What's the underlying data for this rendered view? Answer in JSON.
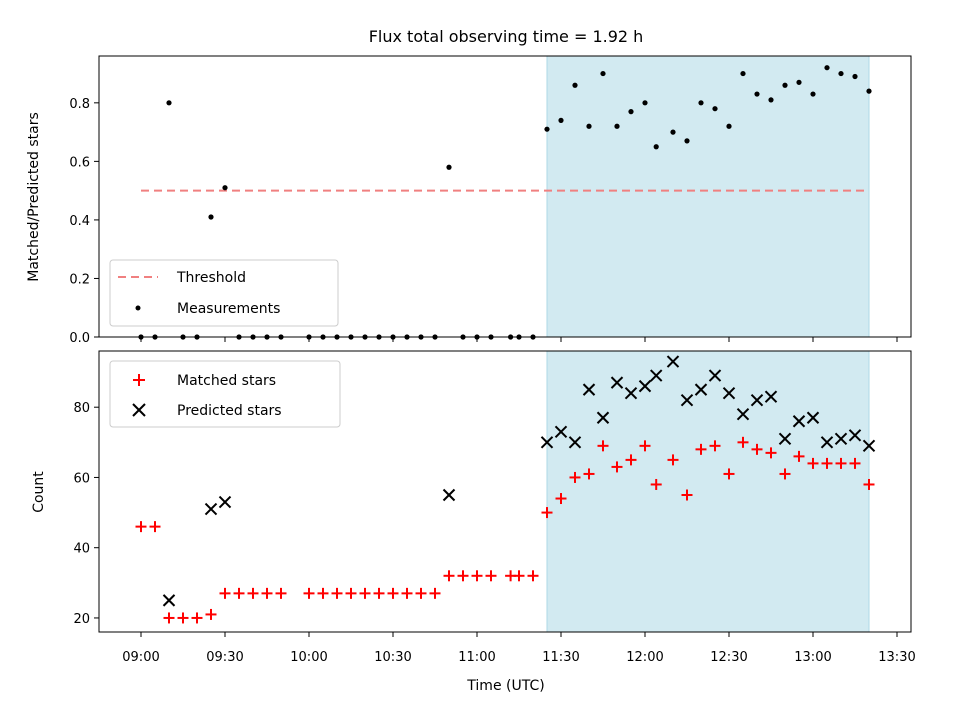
{
  "chart_data": [
    {
      "type": "scatter",
      "title": "Flux total observing time = 1.92 h",
      "xlabel": "",
      "ylabel": "Matched/Predicted stars",
      "xlim": [
        "08:45",
        "13:35"
      ],
      "ylim": [
        0,
        0.96
      ],
      "yticks": [
        0.0,
        0.2,
        0.4,
        0.6,
        0.8
      ],
      "yticklabels": [
        "0.0",
        "0.2",
        "0.4",
        "0.6",
        "0.8"
      ],
      "legend_position": "bottom-left",
      "threshold": {
        "label": "Threshold",
        "value": 0.5,
        "x_range": [
          "09:00",
          "13:20"
        ],
        "color": "#f08080"
      },
      "shaded_region": {
        "x_range": [
          "11:25",
          "13:20"
        ],
        "color": "#add8e6"
      },
      "series": [
        {
          "name": "Measurements",
          "color": "#000000",
          "marker": "dot",
          "points": [
            [
              "09:00",
              0.0
            ],
            [
              "09:05",
              0.0
            ],
            [
              "09:10",
              0.8
            ],
            [
              "09:15",
              0.0
            ],
            [
              "09:20",
              0.0
            ],
            [
              "09:25",
              0.41
            ],
            [
              "09:30",
              0.51
            ],
            [
              "09:35",
              0.0
            ],
            [
              "09:40",
              0.0
            ],
            [
              "09:45",
              0.0
            ],
            [
              "09:50",
              0.0
            ],
            [
              "10:00",
              0.0
            ],
            [
              "10:05",
              0.0
            ],
            [
              "10:10",
              0.0
            ],
            [
              "10:15",
              0.0
            ],
            [
              "10:20",
              0.0
            ],
            [
              "10:25",
              0.0
            ],
            [
              "10:30",
              0.0
            ],
            [
              "10:35",
              0.0
            ],
            [
              "10:40",
              0.0
            ],
            [
              "10:45",
              0.0
            ],
            [
              "10:50",
              0.58
            ],
            [
              "10:55",
              0.0
            ],
            [
              "11:00",
              0.0
            ],
            [
              "11:05",
              0.0
            ],
            [
              "11:12",
              0.0
            ],
            [
              "11:15",
              0.0
            ],
            [
              "11:20",
              0.0
            ],
            [
              "11:25",
              0.71
            ],
            [
              "11:30",
              0.74
            ],
            [
              "11:35",
              0.86
            ],
            [
              "11:40",
              0.72
            ],
            [
              "11:45",
              0.9
            ],
            [
              "11:50",
              0.72
            ],
            [
              "11:55",
              0.77
            ],
            [
              "12:00",
              0.8
            ],
            [
              "12:04",
              0.65
            ],
            [
              "12:10",
              0.7
            ],
            [
              "12:15",
              0.67
            ],
            [
              "12:20",
              0.8
            ],
            [
              "12:25",
              0.78
            ],
            [
              "12:30",
              0.72
            ],
            [
              "12:35",
              0.9
            ],
            [
              "12:40",
              0.83
            ],
            [
              "12:45",
              0.81
            ],
            [
              "12:50",
              0.86
            ],
            [
              "12:55",
              0.87
            ],
            [
              "13:00",
              0.83
            ],
            [
              "13:05",
              0.92
            ],
            [
              "13:10",
              0.9
            ],
            [
              "13:15",
              0.89
            ],
            [
              "13:20",
              0.84
            ]
          ]
        }
      ]
    },
    {
      "type": "scatter",
      "title": "",
      "xlabel": "Time (UTC)",
      "ylabel": "Count",
      "xlim": [
        "08:45",
        "13:35"
      ],
      "ylim": [
        16,
        96
      ],
      "xticks": [
        "09:00",
        "09:30",
        "10:00",
        "10:30",
        "11:00",
        "11:30",
        "12:00",
        "12:30",
        "13:00",
        "13:30"
      ],
      "yticks": [
        20,
        40,
        60,
        80
      ],
      "yticklabels": [
        "20",
        "40",
        "60",
        "80"
      ],
      "legend_position": "top-left",
      "shaded_region": {
        "x_range": [
          "11:25",
          "13:20"
        ],
        "color": "#add8e6"
      },
      "series": [
        {
          "name": "Matched stars",
          "color": "#ff0000",
          "marker": "plus",
          "points": [
            [
              "09:00",
              46
            ],
            [
              "09:05",
              46
            ],
            [
              "09:10",
              20
            ],
            [
              "09:15",
              20
            ],
            [
              "09:20",
              20
            ],
            [
              "09:25",
              21
            ],
            [
              "09:30",
              27
            ],
            [
              "09:35",
              27
            ],
            [
              "09:40",
              27
            ],
            [
              "09:45",
              27
            ],
            [
              "09:50",
              27
            ],
            [
              "10:00",
              27
            ],
            [
              "10:05",
              27
            ],
            [
              "10:10",
              27
            ],
            [
              "10:15",
              27
            ],
            [
              "10:20",
              27
            ],
            [
              "10:25",
              27
            ],
            [
              "10:30",
              27
            ],
            [
              "10:35",
              27
            ],
            [
              "10:40",
              27
            ],
            [
              "10:45",
              27
            ],
            [
              "10:50",
              32
            ],
            [
              "10:55",
              32
            ],
            [
              "11:00",
              32
            ],
            [
              "11:05",
              32
            ],
            [
              "11:12",
              32
            ],
            [
              "11:15",
              32
            ],
            [
              "11:20",
              32
            ],
            [
              "11:25",
              50
            ],
            [
              "11:30",
              54
            ],
            [
              "11:35",
              60
            ],
            [
              "11:40",
              61
            ],
            [
              "11:45",
              69
            ],
            [
              "11:50",
              63
            ],
            [
              "11:55",
              65
            ],
            [
              "12:00",
              69
            ],
            [
              "12:04",
              58
            ],
            [
              "12:10",
              65
            ],
            [
              "12:15",
              55
            ],
            [
              "12:20",
              68
            ],
            [
              "12:25",
              69
            ],
            [
              "12:30",
              61
            ],
            [
              "12:35",
              70
            ],
            [
              "12:40",
              68
            ],
            [
              "12:45",
              67
            ],
            [
              "12:50",
              61
            ],
            [
              "12:55",
              66
            ],
            [
              "13:00",
              64
            ],
            [
              "13:05",
              64
            ],
            [
              "13:10",
              64
            ],
            [
              "13:15",
              64
            ],
            [
              "13:20",
              58
            ]
          ]
        },
        {
          "name": "Predicted stars",
          "color": "#000000",
          "marker": "x",
          "points": [
            [
              "09:10",
              25
            ],
            [
              "09:25",
              51
            ],
            [
              "09:30",
              53
            ],
            [
              "10:50",
              55
            ],
            [
              "11:25",
              70
            ],
            [
              "11:30",
              73
            ],
            [
              "11:35",
              70
            ],
            [
              "11:40",
              85
            ],
            [
              "11:45",
              77
            ],
            [
              "11:50",
              87
            ],
            [
              "11:55",
              84
            ],
            [
              "12:00",
              86
            ],
            [
              "12:04",
              89
            ],
            [
              "12:10",
              93
            ],
            [
              "12:15",
              82
            ],
            [
              "12:20",
              85
            ],
            [
              "12:25",
              89
            ],
            [
              "12:30",
              84
            ],
            [
              "12:35",
              78
            ],
            [
              "12:40",
              82
            ],
            [
              "12:45",
              83
            ],
            [
              "12:50",
              71
            ],
            [
              "12:55",
              76
            ],
            [
              "13:00",
              77
            ],
            [
              "13:05",
              70
            ],
            [
              "13:10",
              71
            ],
            [
              "13:15",
              72
            ],
            [
              "13:20",
              69
            ]
          ]
        }
      ]
    }
  ]
}
